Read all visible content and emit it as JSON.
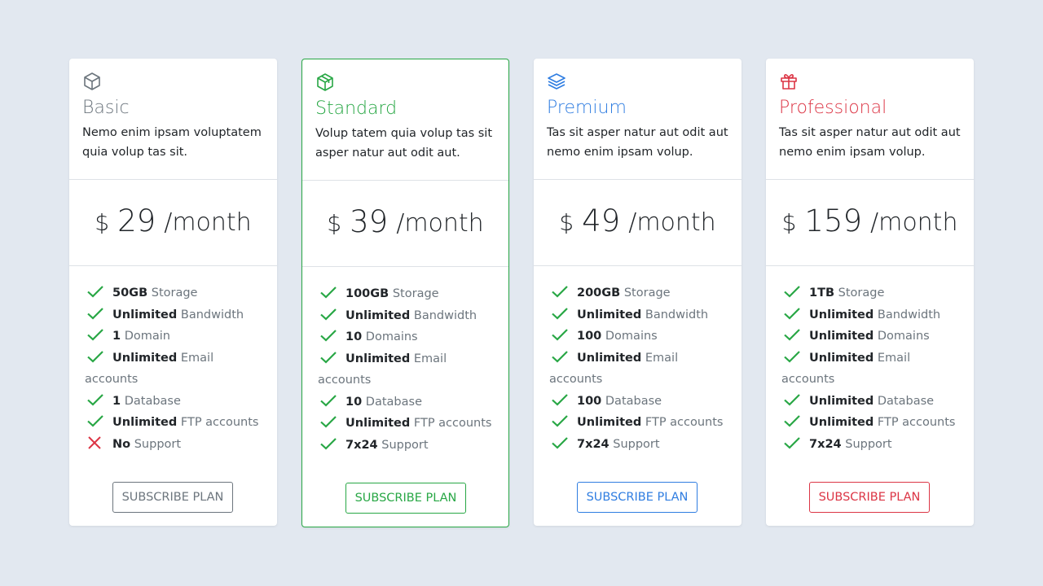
{
  "plans": [
    {
      "name": "Basic",
      "description": "Nemo enim ipsam voluptatem quia volup tas sit.",
      "currency": "$",
      "price": "29",
      "period": "/month",
      "color": "#6c757d",
      "featured": false,
      "features": [
        {
          "bold": "50GB",
          "text": "Storage",
          "included": true
        },
        {
          "bold": "Unlimited",
          "text": "Bandwidth",
          "included": true
        },
        {
          "bold": "1",
          "text": "Domain",
          "included": true
        },
        {
          "bold": "Unlimited",
          "text": "Email accounts",
          "included": true
        },
        {
          "bold": "1",
          "text": "Database",
          "included": true
        },
        {
          "bold": "Unlimited",
          "text": "FTP accounts",
          "included": true
        },
        {
          "bold": "No",
          "text": "Support",
          "included": false
        }
      ],
      "button": "SUBSCRIBE PLAN"
    },
    {
      "name": "Standard",
      "description": "Volup tatem quia volup tas sit asper natur aut odit aut.",
      "currency": "$",
      "price": "39",
      "period": "/month",
      "color": "#28a745",
      "featured": true,
      "features": [
        {
          "bold": "100GB",
          "text": "Storage",
          "included": true
        },
        {
          "bold": "Unlimited",
          "text": "Bandwidth",
          "included": true
        },
        {
          "bold": "10",
          "text": "Domains",
          "included": true
        },
        {
          "bold": "Unlimited",
          "text": "Email accounts",
          "included": true
        },
        {
          "bold": "10",
          "text": "Database",
          "included": true
        },
        {
          "bold": "Unlimited",
          "text": "FTP accounts",
          "included": true
        },
        {
          "bold": "7x24",
          "text": "Support",
          "included": true
        }
      ],
      "button": "SUBSCRIBE PLAN"
    },
    {
      "name": "Premium",
      "description": "Tas sit asper natur aut odit aut nemo enim ipsam volup.",
      "currency": "$",
      "price": "49",
      "period": "/month",
      "color": "#2f7de1",
      "featured": false,
      "features": [
        {
          "bold": "200GB",
          "text": "Storage",
          "included": true
        },
        {
          "bold": "Unlimited",
          "text": "Bandwidth",
          "included": true
        },
        {
          "bold": "100",
          "text": "Domains",
          "included": true
        },
        {
          "bold": "Unlimited",
          "text": "Email accounts",
          "included": true
        },
        {
          "bold": "100",
          "text": "Database",
          "included": true
        },
        {
          "bold": "Unlimited",
          "text": "FTP accounts",
          "included": true
        },
        {
          "bold": "7x24",
          "text": "Support",
          "included": true
        }
      ],
      "button": "SUBSCRIBE PLAN"
    },
    {
      "name": "Professional",
      "description": "Tas sit asper natur aut odit aut nemo enim ipsam volup.",
      "currency": "$",
      "price": "159",
      "period": "/month",
      "color": "#dc3545",
      "featured": false,
      "features": [
        {
          "bold": "1TB",
          "text": "Storage",
          "included": true
        },
        {
          "bold": "Unlimited",
          "text": "Bandwidth",
          "included": true
        },
        {
          "bold": "Unlimited",
          "text": "Domains",
          "included": true
        },
        {
          "bold": "Unlimited",
          "text": "Email accounts",
          "included": true
        },
        {
          "bold": "Unlimited",
          "text": "Database",
          "included": true
        },
        {
          "bold": "Unlimited",
          "text": "FTP accounts",
          "included": true
        },
        {
          "bold": "7x24",
          "text": "Support",
          "included": true
        }
      ],
      "button": "SUBSCRIBE PLAN"
    }
  ]
}
